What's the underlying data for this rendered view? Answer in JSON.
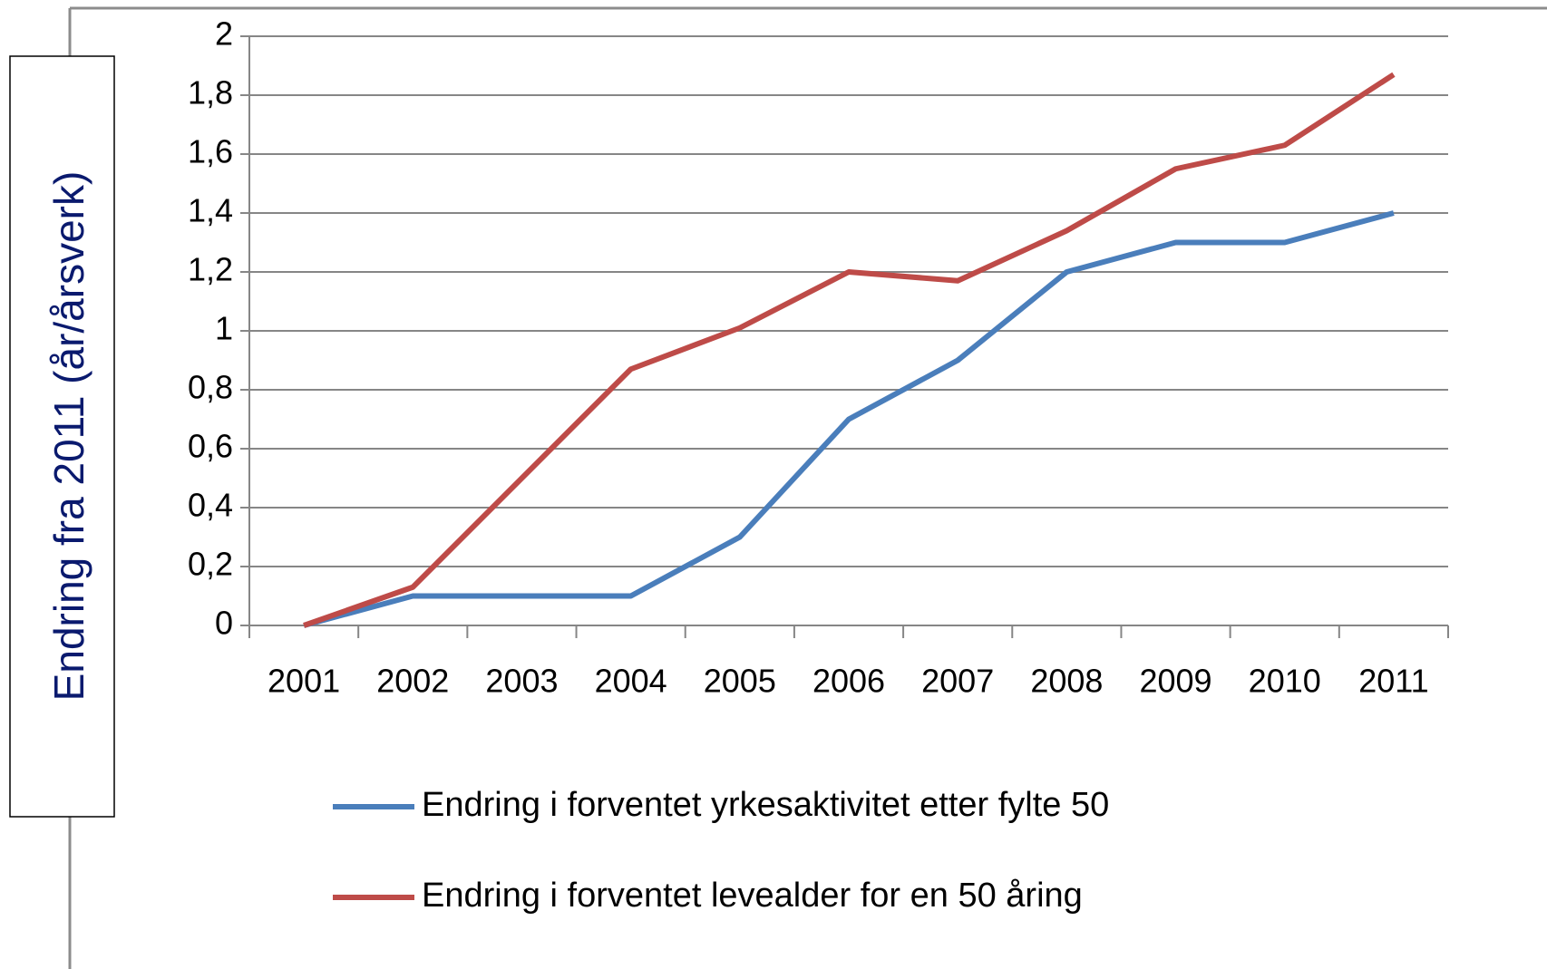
{
  "chart_data": {
    "type": "line",
    "y_label": "Endring fra 2011  (år/årsverk)",
    "categories": [
      "2001",
      "2002",
      "2003",
      "2004",
      "2005",
      "2006",
      "2007",
      "2008",
      "2009",
      "2010",
      "2011"
    ],
    "series": [
      {
        "name": "Endring i forventet yrkesaktivitet etter fylte 50",
        "color": "#4a7ebb",
        "values": [
          0,
          0.1,
          0.1,
          0.1,
          0.3,
          0.7,
          0.9,
          1.2,
          1.3,
          1.3,
          1.4
        ]
      },
      {
        "name": "Endring i forventet levealder for en 50 åring",
        "color": "#be4b48",
        "values": [
          0,
          0.13,
          0.5,
          0.87,
          1.01,
          1.2,
          1.17,
          1.34,
          1.55,
          1.63,
          1.87
        ]
      }
    ],
    "ylim": [
      0,
      2
    ],
    "yticks": [
      0,
      {
        "value": 0.2,
        "label": "0,2"
      },
      {
        "value": 0.4,
        "label": "0,4"
      },
      {
        "value": 0.6,
        "label": "0,6"
      },
      {
        "value": 0.8,
        "label": "0,8"
      },
      1,
      {
        "value": 1.2,
        "label": "1,2"
      },
      {
        "value": 1.4,
        "label": "1,4"
      },
      {
        "value": 1.6,
        "label": "1,6"
      },
      {
        "value": 1.8,
        "label": "1,8"
      },
      2
    ],
    "grid": true
  }
}
